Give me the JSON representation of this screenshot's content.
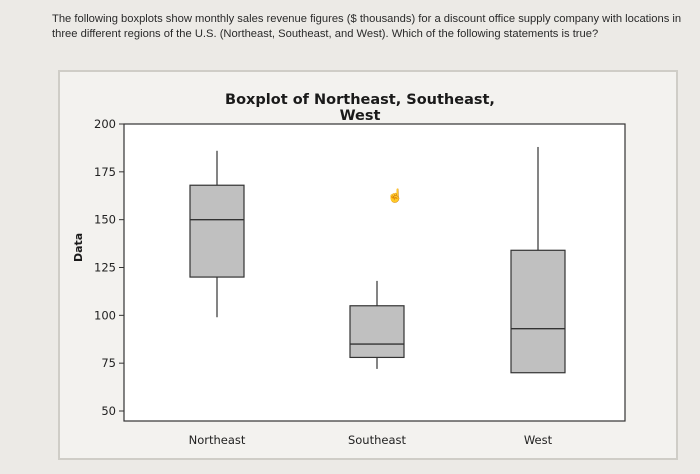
{
  "question": {
    "line1": "The following boxplots show monthly sales revenue figures ($ thousands) for a discount office supply company with locations in",
    "line2": "three different regions of the U.S. (Northeast, Southeast, and West). Which of the following statements is true?"
  },
  "cursor_icon": "hand-pointer-icon",
  "chart_data": {
    "type": "boxplot",
    "title": "Boxplot of Northeast, Southeast, West",
    "xlabel": "",
    "ylabel": "Data",
    "ylim": [
      50,
      200
    ],
    "yticks": [
      50,
      75,
      100,
      125,
      150,
      175,
      200
    ],
    "grid": false,
    "categories": [
      "Northeast",
      "Southeast",
      "West"
    ],
    "boxes": [
      {
        "name": "Northeast",
        "min": 99,
        "q1": 120,
        "median": 150,
        "q3": 168,
        "max": 186
      },
      {
        "name": "Southeast",
        "min": 72,
        "q1": 78,
        "median": 85,
        "q3": 105,
        "max": 118
      },
      {
        "name": "West",
        "min": 70,
        "q1": 70,
        "median": 93,
        "q3": 134,
        "max": 188
      }
    ],
    "colors": {
      "box_fill": "#c0c0c0",
      "box_stroke": "#333333",
      "axis": "#333333",
      "plot_bg": "#ffffff"
    }
  }
}
